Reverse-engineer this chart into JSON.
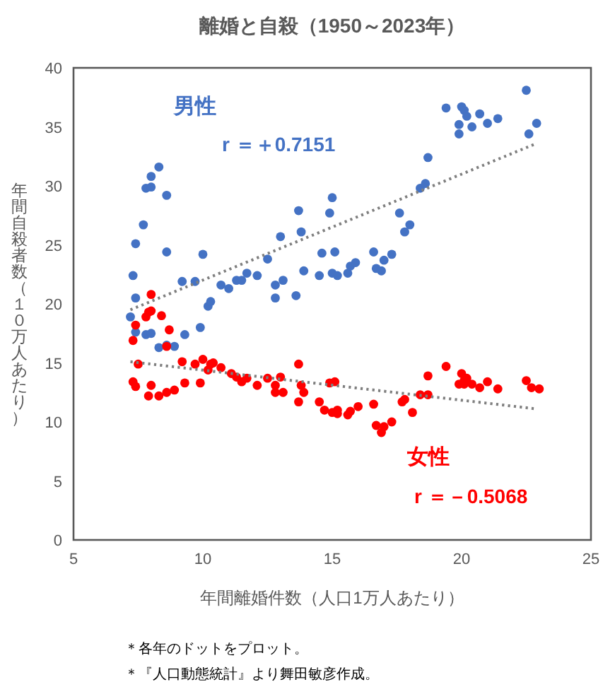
{
  "chart_data": {
    "type": "scatter",
    "title": "離婚と自殺（1950～2023年）",
    "xlabel": "年間離婚件数（人口1万人あたり）",
    "ylabel": "年間自殺者数（１０万人あたり）",
    "xlim": [
      5,
      25
    ],
    "xticks": [
      5,
      10,
      15,
      20,
      25
    ],
    "ylim": [
      0,
      40
    ],
    "yticks": [
      0,
      5,
      10,
      15,
      20,
      25,
      30,
      35,
      40
    ],
    "grid": false,
    "series": [
      {
        "name": "男性",
        "color": "#4472c4",
        "marker": "circle",
        "x": [
          8.3,
          8.0,
          7.8,
          8.0,
          8.6,
          7.7,
          7.4,
          8.6,
          10.0,
          7.3,
          9.2,
          9.7,
          7.4,
          10.7,
          11.0,
          10.2,
          10.3,
          7.2,
          11.3,
          11.5,
          11.7,
          12.1,
          12.5,
          13.0,
          12.8,
          12.8,
          13.1,
          13.7,
          13.8,
          13.6,
          13.9,
          14.5,
          14.6,
          14.9,
          15.0,
          15.0,
          15.2,
          15.1,
          15.6,
          15.7,
          15.9,
          16.6,
          16.7,
          16.9,
          17.0,
          17.3,
          17.6,
          17.8,
          18.0,
          18.4,
          18.6,
          18.7,
          19.4,
          19.9,
          19.9,
          20.0,
          20.1,
          20.2,
          20.4,
          20.7,
          21.0,
          21.4,
          22.5,
          22.6,
          22.9,
          7.4,
          7.8,
          8.0,
          8.3,
          8.6,
          8.9,
          9.3,
          9.9
        ],
        "values": [
          31.6,
          30.8,
          29.8,
          29.9,
          29.2,
          26.7,
          25.1,
          24.4,
          24.2,
          22.4,
          21.9,
          21.9,
          20.5,
          21.6,
          21.3,
          19.8,
          20.2,
          18.9,
          22.0,
          22.0,
          22.6,
          22.4,
          23.8,
          25.7,
          20.5,
          21.6,
          22.0,
          27.9,
          26.1,
          20.7,
          22.8,
          22.4,
          24.3,
          27.7,
          29.0,
          22.6,
          22.4,
          24.4,
          22.6,
          23.2,
          23.5,
          24.4,
          23.0,
          22.8,
          23.7,
          24.2,
          27.7,
          26.1,
          26.7,
          29.8,
          30.2,
          32.4,
          36.6,
          35.2,
          34.4,
          36.7,
          36.4,
          35.9,
          35.0,
          36.1,
          35.3,
          35.7,
          38.1,
          34.4,
          35.3,
          17.6,
          17.4,
          17.5,
          16.3,
          16.5,
          16.4,
          17.4,
          18.0
        ]
      },
      {
        "name": "女性",
        "color": "#ff0000",
        "marker": "circle",
        "x": [
          8.0,
          7.8,
          7.9,
          8.0,
          8.4,
          7.4,
          8.7,
          7.3,
          8.6,
          7.5,
          7.3,
          7.4,
          8.0,
          7.9,
          8.3,
          8.6,
          8.9,
          9.2,
          9.3,
          9.7,
          9.9,
          10.0,
          10.2,
          10.3,
          10.4,
          10.7,
          11.1,
          11.3,
          11.5,
          11.7,
          12.1,
          12.5,
          12.8,
          12.8,
          13.0,
          13.1,
          13.7,
          13.7,
          13.8,
          13.9,
          14.5,
          14.7,
          14.9,
          15.1,
          15.0,
          15.2,
          15.2,
          15.6,
          15.7,
          16.0,
          16.6,
          16.7,
          16.9,
          17.0,
          17.3,
          17.7,
          17.8,
          18.1,
          18.4,
          18.7,
          18.7,
          19.4,
          20.0,
          19.9,
          20.1,
          20.1,
          20.2,
          20.4,
          20.7,
          21.0,
          21.4,
          22.5,
          22.7,
          23.0
        ],
        "values": [
          20.8,
          18.9,
          19.3,
          19.4,
          19.0,
          18.2,
          17.8,
          16.9,
          16.4,
          14.9,
          13.4,
          13.0,
          13.1,
          12.2,
          12.2,
          12.5,
          12.7,
          15.1,
          13.3,
          14.9,
          13.3,
          15.3,
          14.4,
          14.9,
          15.0,
          14.6,
          14.1,
          13.8,
          13.4,
          13.7,
          13.1,
          13.7,
          12.5,
          13.1,
          13.8,
          12.5,
          14.9,
          11.7,
          13.1,
          12.5,
          11.7,
          11.0,
          13.3,
          13.4,
          10.8,
          10.7,
          11.0,
          10.6,
          10.9,
          11.3,
          11.5,
          9.7,
          9.1,
          9.6,
          10.0,
          11.7,
          11.9,
          10.8,
          12.3,
          12.3,
          13.9,
          14.7,
          14.1,
          13.2,
          13.5,
          13.2,
          13.7,
          13.2,
          12.9,
          13.4,
          12.8,
          13.5,
          12.9,
          12.8
        ]
      },
      {
        "type": "line",
        "color": "#7f7f7f",
        "line_style": "dotted",
        "marker": "none",
        "x": [
          7.2,
          22.9
        ],
        "values": [
          19.5,
          33.6
        ]
      },
      {
        "type": "line",
        "color": "#7f7f7f",
        "line_style": "dotted",
        "marker": "none",
        "x": [
          7.2,
          22.9
        ],
        "values": [
          15.1,
          11.1
        ]
      }
    ],
    "annotations": [
      "r ＝＋0.7151",
      "r ＝－0.5068",
      "＊各年のドットをプロット。",
      "＊『人口動態統計』より舞田敏彦作成。"
    ]
  }
}
